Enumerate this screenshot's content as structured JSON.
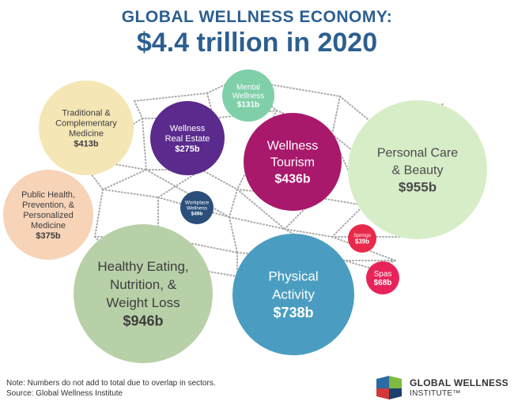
{
  "header": {
    "title": "GLOBAL WELLNESS ECONOMY:",
    "subtitle": "$4.4 trillion in 2020"
  },
  "chart_data": {
    "type": "bubble",
    "title": "GLOBAL WELLNESS ECONOMY:",
    "subtitle": "$4.4 trillion in 2020",
    "unit": "billion USD",
    "sectors": [
      {
        "name": "Personal Care & Beauty",
        "lines": [
          "Personal Care",
          "& Beauty"
        ],
        "label": "$955b",
        "value": 955,
        "color": "#d7edc8",
        "text_color": "#4a4a4a"
      },
      {
        "name": "Healthy Eating, Nutrition, & Weight Loss",
        "lines": [
          "Healthy Eating,",
          "Nutrition, &",
          "Weight Loss"
        ],
        "label": "$946b",
        "value": 946,
        "color": "#b8d0a8",
        "text_color": "#3d3d3d"
      },
      {
        "name": "Physical Activity",
        "lines": [
          "Physical",
          "Activity"
        ],
        "label": "$738b",
        "value": 738,
        "color": "#4a9dc0",
        "text_color": "#ffffff"
      },
      {
        "name": "Wellness Tourism",
        "lines": [
          "Wellness",
          "Tourism"
        ],
        "label": "$436b",
        "value": 436,
        "color": "#a8196b",
        "text_color": "#ffffff"
      },
      {
        "name": "Traditional & Complementary Medicine",
        "lines": [
          "Traditional &",
          "Complementary",
          "Medicine"
        ],
        "label": "$413b",
        "value": 413,
        "color": "#f5e6b5",
        "text_color": "#3d3d3d"
      },
      {
        "name": "Public Health, Prevention, & Personalized Medicine",
        "lines": [
          "Public Health,",
          "Prevention, &",
          "Personalized",
          "Medicine"
        ],
        "label": "$375b",
        "value": 375,
        "color": "#f7d3b8",
        "text_color": "#3d3d3d"
      },
      {
        "name": "Wellness Real Estate",
        "lines": [
          "Wellness",
          "Real Estate"
        ],
        "label": "$275b",
        "value": 275,
        "color": "#5a2a8c",
        "text_color": "#ffffff"
      },
      {
        "name": "Mental Wellness",
        "lines": [
          "Mental",
          "Wellness"
        ],
        "label": "$131b",
        "value": 131,
        "color": "#7fd0a8",
        "text_color": "#ffffff"
      },
      {
        "name": "Spas",
        "lines": [
          "Spas"
        ],
        "label": "$68b",
        "value": 68,
        "color": "#e8235a",
        "text_color": "#ffffff"
      },
      {
        "name": "Workplace Wellness",
        "lines": [
          "Workplace",
          "Wellness"
        ],
        "label": "$49b",
        "value": 49,
        "color": "#2b4e7a",
        "text_color": "#ffffff"
      },
      {
        "name": "Springs",
        "lines": [
          "Springs"
        ],
        "label": "$39b",
        "value": 39,
        "color": "#e8294a",
        "text_color": "#ffffff"
      }
    ],
    "connector_color": "#a8a8a8"
  },
  "footer": {
    "note": "Note: Numbers do not add to total due to overlap in sectors.",
    "source": "Source: Global Wellness Institute"
  },
  "logo": {
    "line1": "GLOBAL WELLNESS",
    "line2": "INSTITUTE™",
    "colors": [
      "#2b6aa3",
      "#7fba3f",
      "#d23a3a",
      "#1d3f6e"
    ]
  }
}
